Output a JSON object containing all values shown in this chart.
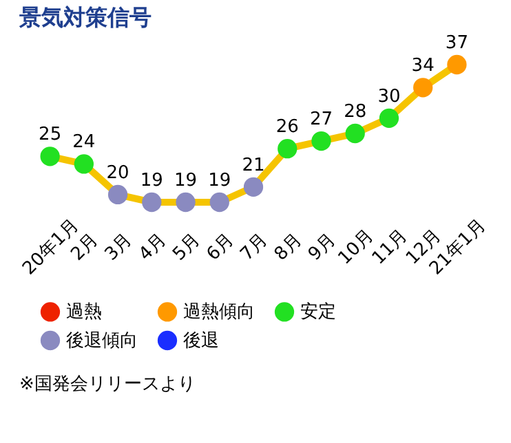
{
  "chart_data": {
    "type": "line",
    "title": "景気対策信号",
    "categories": [
      "20年1月",
      "2月",
      "3月",
      "4月",
      "5月",
      "6月",
      "7月",
      "8月",
      "9月",
      "10月",
      "11月",
      "12月",
      "21年1月"
    ],
    "series": [
      {
        "color": "#f5c400",
        "values": [
          25,
          24,
          20,
          19,
          19,
          19,
          21,
          26,
          27,
          28,
          30,
          34,
          37
        ],
        "colors": [
          "#22e022",
          "#22e022",
          "#8a8ac0",
          "#8a8ac0",
          "#8a8ac0",
          "#8a8ac0",
          "#8a8ac0",
          "#22e022",
          "#22e022",
          "#22e022",
          "#22e022",
          "#ff9900",
          "#ff9900"
        ]
      },
      {
        "type": "scatter",
        "name": "過熱",
        "color": "#ee2200",
        "values": [
          null,
          null,
          null,
          null,
          null,
          null,
          null,
          null,
          null,
          null,
          null,
          null,
          null
        ]
      },
      {
        "type": "scatter",
        "name": "過熱傾向",
        "color": "#ff9900",
        "values": [
          null,
          null,
          null,
          null,
          null,
          null,
          null,
          null,
          null,
          null,
          null,
          null,
          null
        ]
      },
      {
        "type": "scatter",
        "name": "安定",
        "color": "#22e022",
        "values": [
          null,
          null,
          null,
          null,
          null,
          null,
          null,
          null,
          null,
          null,
          null,
          null,
          null
        ]
      },
      {
        "type": "scatter",
        "name": "後退傾向",
        "color": "#8a8ac0",
        "values": [
          null,
          null,
          null,
          null,
          null,
          null,
          null,
          null,
          null,
          null,
          null,
          null,
          null
        ]
      },
      {
        "type": "scatter",
        "name": "後退",
        "color": "#1a2eff",
        "values": [
          null,
          null,
          null,
          null,
          null,
          null,
          null,
          null,
          null,
          null,
          null,
          null,
          null
        ]
      }
    ],
    "data_labels": true,
    "marker": "circle",
    "legend": "bottom",
    "grid": false,
    "annotations": [
      "※国発会リリースより"
    ]
  }
}
